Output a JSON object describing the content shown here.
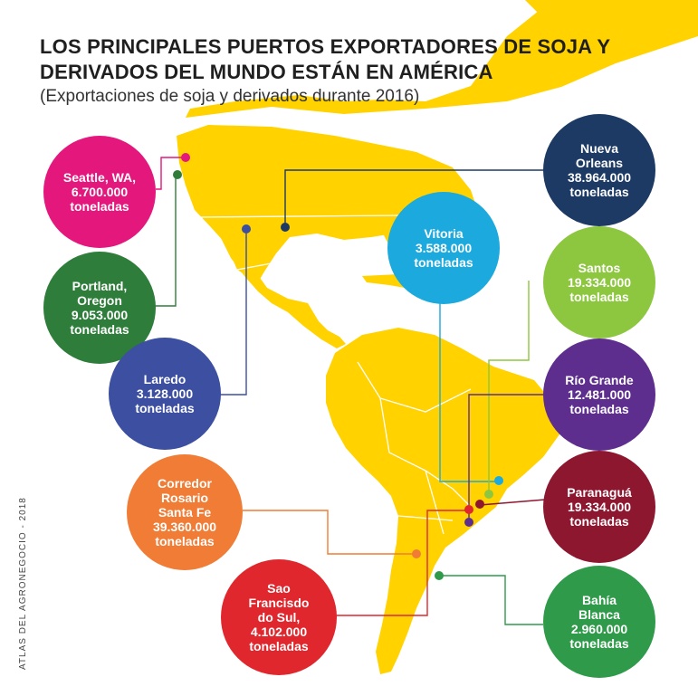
{
  "header": {
    "title": "LOS PRINCIPALES PUERTOS  EXPORTADORES DE SOJA Y DERIVADOS DEL MUNDO ESTÁN EN AMÉRICA",
    "subtitle": "(Exportaciones de soja y derivados durante 2016)"
  },
  "credit": "ATLAS DEL AGRONEGOCIO - 2018",
  "colors": {
    "land": "#ffd200",
    "ocean": "#ffffff",
    "border": "#ffffff"
  },
  "ports": [
    {
      "id": "seattle",
      "lines": [
        "Seattle, WA,",
        "6.700.000",
        "toneladas"
      ],
      "color": "#e4177d"
    },
    {
      "id": "portland",
      "lines": [
        "Portland,",
        "Oregon",
        "9.053.000",
        "toneladas"
      ],
      "color": "#2e7d3a"
    },
    {
      "id": "laredo",
      "lines": [
        "Laredo",
        "3.128.000",
        "toneladas"
      ],
      "color": "#3c4fa0"
    },
    {
      "id": "neworleans",
      "lines": [
        "Nueva",
        "Orleans",
        "38.964.000",
        "toneladas"
      ],
      "color": "#1c3a63"
    },
    {
      "id": "vitoria",
      "lines": [
        "Vitoria",
        "3.588.000",
        "toneladas"
      ],
      "color": "#1ba9de"
    },
    {
      "id": "santos",
      "lines": [
        "Santos",
        "19.334.000",
        "toneladas"
      ],
      "color": "#8dc63f"
    },
    {
      "id": "riogrande",
      "lines": [
        "Río Grande",
        "12.481.000",
        "toneladas"
      ],
      "color": "#5e2e8f"
    },
    {
      "id": "paranagua",
      "lines": [
        "Paranaguá",
        "19.334.000",
        "toneladas"
      ],
      "color": "#8e1730"
    },
    {
      "id": "rosario",
      "lines": [
        "Corredor",
        "Rosario",
        "Santa Fe",
        "39.360.000",
        "toneladas"
      ],
      "color": "#f07c35"
    },
    {
      "id": "saofrancisco",
      "lines": [
        "Sao",
        "Francisdo",
        "do Sul,",
        "4.102.000",
        "toneladas"
      ],
      "color": "#e0272d"
    },
    {
      "id": "bahiablanca",
      "lines": [
        "Bahía",
        "Blanca",
        "2.960.000",
        "toneladas"
      ],
      "color": "#2f9a4a"
    }
  ]
}
